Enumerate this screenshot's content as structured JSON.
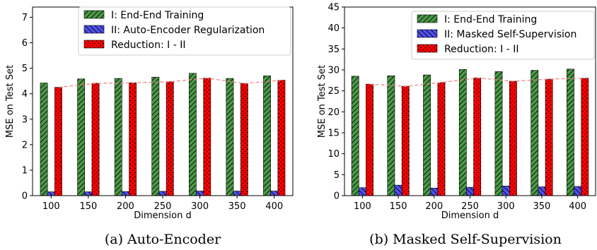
{
  "colors": {
    "series1": "#4a9a46",
    "series2": "#5050ee",
    "series3": "#ff0000",
    "trend": "#f08080"
  },
  "chart_data": [
    {
      "type": "bar",
      "caption": "(a)  Auto-Encoder",
      "xlabel": "Dimension d",
      "ylabel": "MSE on Test Set",
      "categories": [
        "100",
        "150",
        "200",
        "250",
        "300",
        "350",
        "400"
      ],
      "ylim": [
        0,
        7.4
      ],
      "yticks": [
        0,
        1,
        2,
        3,
        4,
        5,
        6,
        7
      ],
      "legend_position": "top-right",
      "series": [
        {
          "name": "I: End-End Training",
          "hatch": "diagonal",
          "values": [
            4.42,
            4.58,
            4.6,
            4.65,
            4.8,
            4.6,
            4.7
          ]
        },
        {
          "name": "II: Auto-Encoder Regularization",
          "hatch": "back-diagonal",
          "values": [
            0.15,
            0.15,
            0.16,
            0.17,
            0.18,
            0.18,
            0.18
          ]
        },
        {
          "name": "Reduction: I - II",
          "hatch": "dots",
          "values": [
            4.25,
            4.41,
            4.43,
            4.47,
            4.61,
            4.4,
            4.53
          ]
        }
      ],
      "trend_of_series": 2
    },
    {
      "type": "bar",
      "caption": "(b)  Masked Self-Supervision",
      "xlabel": "Dimension d",
      "ylabel": "MSE on Test Set",
      "categories": [
        "100",
        "150",
        "200",
        "250",
        "300",
        "350",
        "400"
      ],
      "ylim": [
        0,
        45
      ],
      "yticks": [
        0,
        5,
        10,
        15,
        20,
        25,
        30,
        35,
        40,
        45
      ],
      "legend_position": "top-right",
      "series": [
        {
          "name": "I: End-End Training",
          "hatch": "diagonal",
          "values": [
            28.5,
            28.6,
            28.8,
            30.1,
            29.6,
            29.9,
            30.2
          ]
        },
        {
          "name": "II: Masked Self-Supervision",
          "hatch": "back-diagonal",
          "values": [
            1.9,
            2.5,
            1.8,
            2.0,
            2.3,
            2.1,
            2.2
          ]
        },
        {
          "name": "Reduction: I - II",
          "hatch": "dots",
          "values": [
            26.6,
            26.1,
            27.0,
            28.1,
            27.3,
            27.8,
            28.0
          ]
        }
      ],
      "trend_of_series": 2
    }
  ]
}
